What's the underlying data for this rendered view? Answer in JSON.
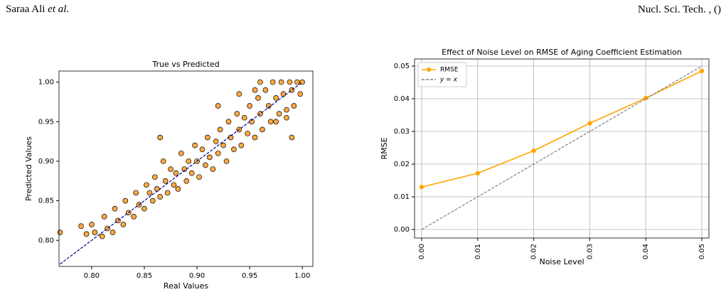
{
  "header": {
    "author": "Saraa Ali",
    "author_suffix": "et al.",
    "journal": "Nucl. Sci. Tech. , ()"
  },
  "chart_data": [
    {
      "type": "scatter",
      "title": "True vs Predicted",
      "x_label": "Real Values",
      "y_label": "Predicted Values",
      "color": "#ff8c00",
      "edgecolor": "#000000",
      "grid": false,
      "xlim": [
        0.769,
        1.01
      ],
      "ylim": [
        0.767,
        1.014
      ],
      "xticks": [
        {
          "value": 0.8,
          "label": "0.80"
        },
        {
          "value": 0.85,
          "label": "0.85"
        },
        {
          "value": 0.9,
          "label": "0.90"
        },
        {
          "value": 0.95,
          "label": "0.95"
        },
        {
          "value": 1.0,
          "label": "1.00"
        }
      ],
      "yticks": [
        {
          "value": 0.8,
          "label": "0.80"
        },
        {
          "value": 0.85,
          "label": "0.85"
        },
        {
          "value": 0.9,
          "label": "0.90"
        },
        {
          "value": 0.95,
          "label": "0.95"
        },
        {
          "value": 1.0,
          "label": "1.00"
        }
      ],
      "x": [
        0.77,
        0.79,
        0.795,
        0.8,
        0.803,
        0.81,
        0.812,
        0.815,
        0.82,
        0.822,
        0.825,
        0.83,
        0.832,
        0.835,
        0.84,
        0.842,
        0.845,
        0.85,
        0.852,
        0.855,
        0.858,
        0.86,
        0.862,
        0.865,
        0.868,
        0.87,
        0.872,
        0.875,
        0.878,
        0.88,
        0.882,
        0.885,
        0.888,
        0.89,
        0.892,
        0.895,
        0.898,
        0.9,
        0.902,
        0.905,
        0.908,
        0.91,
        0.912,
        0.915,
        0.918,
        0.92,
        0.922,
        0.925,
        0.928,
        0.93,
        0.932,
        0.935,
        0.938,
        0.94,
        0.942,
        0.945,
        0.948,
        0.95,
        0.952,
        0.955,
        0.958,
        0.96,
        0.962,
        0.965,
        0.968,
        0.97,
        0.972,
        0.975,
        0.978,
        0.98,
        0.982,
        0.985,
        0.988,
        0.99,
        0.992,
        0.995,
        0.998,
        1.0,
        0.955,
        0.96,
        0.975,
        0.985,
        0.94,
        0.92,
        0.865,
        0.99
      ],
      "y": [
        0.81,
        0.818,
        0.808,
        0.82,
        0.81,
        0.805,
        0.83,
        0.815,
        0.81,
        0.84,
        0.825,
        0.82,
        0.85,
        0.835,
        0.83,
        0.86,
        0.845,
        0.84,
        0.87,
        0.86,
        0.85,
        0.88,
        0.865,
        0.855,
        0.9,
        0.875,
        0.86,
        0.89,
        0.87,
        0.885,
        0.865,
        0.91,
        0.89,
        0.875,
        0.9,
        0.885,
        0.92,
        0.9,
        0.88,
        0.915,
        0.895,
        0.93,
        0.905,
        0.89,
        0.925,
        0.91,
        0.94,
        0.92,
        0.9,
        0.95,
        0.93,
        0.915,
        0.96,
        0.94,
        0.92,
        0.955,
        0.935,
        0.97,
        0.95,
        0.93,
        0.98,
        0.96,
        0.94,
        0.99,
        0.97,
        0.95,
        1.0,
        0.98,
        0.96,
        1.0,
        0.985,
        0.965,
        1.0,
        0.99,
        0.97,
        1.0,
        0.985,
        1.0,
        0.99,
        1.0,
        0.95,
        0.955,
        0.985,
        0.97,
        0.93,
        0.93
      ],
      "line": {
        "x": [
          0.77,
          1.0
        ],
        "y": [
          0.77,
          1.0
        ],
        "color": "#00008b",
        "dashed": true
      }
    },
    {
      "type": "line",
      "title": "Effect of Noise Level on RMSE of Aging Coefficient Estimation",
      "x_label": "Noise Level",
      "y_label": "RMSE",
      "grid": true,
      "legend": "upper left",
      "xtick_rotation": 90,
      "xlim": [
        -0.00127,
        0.05127
      ],
      "ylim": [
        -0.0026,
        0.05217
      ],
      "x": [
        0,
        0.01,
        0.02,
        0.03,
        0.04,
        0.05
      ],
      "xticks": [
        {
          "value": 0,
          "label": "0.00"
        },
        {
          "value": 0.01,
          "label": "0.01"
        },
        {
          "value": 0.02,
          "label": "0.02"
        },
        {
          "value": 0.03,
          "label": "0.03"
        },
        {
          "value": 0.04,
          "label": "0.04"
        },
        {
          "value": 0.05,
          "label": "0.05"
        }
      ],
      "yticks": [
        {
          "value": 0,
          "label": "0.00"
        },
        {
          "value": 0.01,
          "label": "0.01"
        },
        {
          "value": 0.02,
          "label": "0.02"
        },
        {
          "value": 0.03,
          "label": "0.03"
        },
        {
          "value": 0.04,
          "label": "0.04"
        },
        {
          "value": 0.05,
          "label": "0.05"
        }
      ],
      "series": [
        {
          "name": "RMSE",
          "color": "#ffa500",
          "marker": true,
          "dashed": false,
          "values": [
            0.013,
            0.0172,
            0.0241,
            0.0325,
            0.0402,
            0.0485
          ]
        },
        {
          "name": "y = x",
          "color": "#808080",
          "marker": false,
          "dashed": true,
          "values": [
            0,
            0.01,
            0.02,
            0.03,
            0.04,
            0.05
          ]
        }
      ]
    }
  ]
}
